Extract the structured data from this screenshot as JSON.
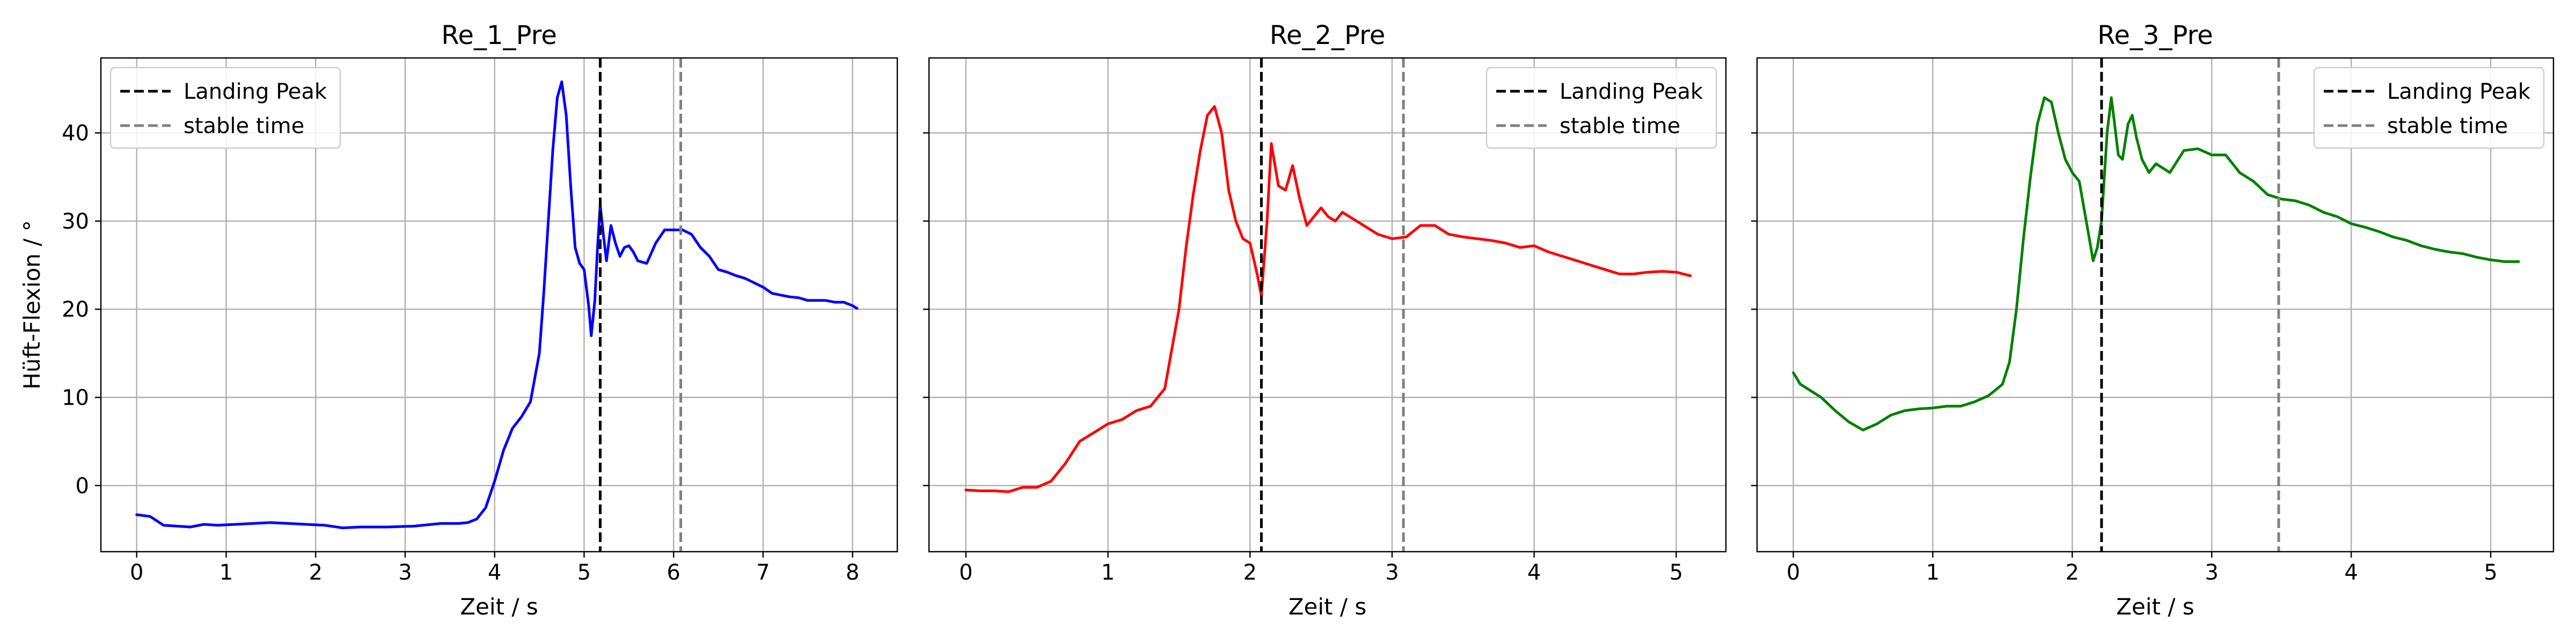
{
  "chart_data": [
    {
      "type": "line",
      "title": "Re_1_Pre",
      "xlabel": "Zeit / s",
      "ylabel": "Hüft-Flexion / °",
      "xlim": [
        -0.4,
        8.5
      ],
      "ylim": [
        -7.5,
        48.5
      ],
      "xticks": [
        0,
        1,
        2,
        3,
        4,
        5,
        6,
        7,
        8
      ],
      "yticks": [
        0,
        10,
        20,
        30,
        40
      ],
      "grid": true,
      "legend": {
        "position": "top-left",
        "entries": [
          "Landing Peak",
          "stable time"
        ]
      },
      "landing_peak": 5.18,
      "stable_time": 6.08,
      "series": [
        {
          "color": "#0000ff",
          "x": [
            0.0,
            0.15,
            0.3,
            0.45,
            0.6,
            0.75,
            0.9,
            1.1,
            1.3,
            1.5,
            1.7,
            1.9,
            2.1,
            2.3,
            2.5,
            2.8,
            3.1,
            3.4,
            3.6,
            3.7,
            3.8,
            3.9,
            4.0,
            4.1,
            4.2,
            4.3,
            4.4,
            4.5,
            4.55,
            4.6,
            4.65,
            4.7,
            4.75,
            4.8,
            4.85,
            4.9,
            4.95,
            5.0,
            5.05,
            5.08,
            5.12,
            5.15,
            5.18,
            5.22,
            5.25,
            5.3,
            5.35,
            5.4,
            5.45,
            5.5,
            5.55,
            5.6,
            5.7,
            5.8,
            5.9,
            6.0,
            6.1,
            6.2,
            6.3,
            6.4,
            6.5,
            6.6,
            6.7,
            6.8,
            6.9,
            7.0,
            7.1,
            7.2,
            7.3,
            7.4,
            7.5,
            7.6,
            7.7,
            7.8,
            7.9,
            8.0,
            8.05
          ],
          "y": [
            -3.3,
            -3.5,
            -4.5,
            -4.6,
            -4.7,
            -4.4,
            -4.5,
            -4.4,
            -4.3,
            -4.2,
            -4.3,
            -4.4,
            -4.5,
            -4.8,
            -4.7,
            -4.7,
            -4.6,
            -4.3,
            -4.3,
            -4.2,
            -3.8,
            -2.5,
            0.5,
            4.0,
            6.5,
            7.8,
            9.5,
            15.0,
            22.0,
            30.0,
            38.0,
            44.0,
            45.8,
            42.0,
            34.0,
            27.0,
            25.2,
            24.5,
            20.5,
            17.0,
            21.0,
            27.0,
            31.8,
            28.0,
            25.5,
            29.5,
            27.5,
            26.0,
            27.0,
            27.2,
            26.5,
            25.5,
            25.2,
            27.5,
            29.0,
            29.0,
            29.0,
            28.5,
            27.0,
            26.0,
            24.5,
            24.2,
            23.8,
            23.5,
            23.0,
            22.5,
            21.8,
            21.6,
            21.4,
            21.3,
            21.0,
            21.0,
            21.0,
            20.8,
            20.8,
            20.4,
            20.1
          ]
        }
      ]
    },
    {
      "type": "line",
      "title": "Re_2_Pre",
      "xlabel": "Zeit / s",
      "xlim": [
        -0.26,
        5.35
      ],
      "ylim": [
        -7.5,
        48.5
      ],
      "xticks": [
        0,
        1,
        2,
        3,
        4,
        5
      ],
      "yticks": [
        0,
        10,
        20,
        30,
        40
      ],
      "grid": true,
      "legend": {
        "position": "top-right",
        "entries": [
          "Landing Peak",
          "stable time"
        ]
      },
      "landing_peak": 2.08,
      "stable_time": 3.08,
      "series": [
        {
          "color": "#ff0000",
          "x": [
            0.0,
            0.1,
            0.2,
            0.3,
            0.4,
            0.5,
            0.6,
            0.7,
            0.8,
            0.9,
            1.0,
            1.1,
            1.2,
            1.3,
            1.4,
            1.5,
            1.55,
            1.6,
            1.65,
            1.7,
            1.75,
            1.8,
            1.85,
            1.9,
            1.95,
            2.0,
            2.05,
            2.08,
            2.12,
            2.15,
            2.2,
            2.25,
            2.3,
            2.35,
            2.4,
            2.45,
            2.5,
            2.55,
            2.6,
            2.65,
            2.7,
            2.8,
            2.9,
            3.0,
            3.1,
            3.2,
            3.3,
            3.4,
            3.5,
            3.6,
            3.7,
            3.8,
            3.9,
            4.0,
            4.1,
            4.2,
            4.3,
            4.4,
            4.5,
            4.6,
            4.7,
            4.8,
            4.9,
            5.0,
            5.1
          ],
          "y": [
            -0.5,
            -0.6,
            -0.6,
            -0.7,
            -0.2,
            -0.2,
            0.5,
            2.5,
            5.0,
            6.0,
            7.0,
            7.5,
            8.5,
            9.0,
            11.0,
            20.0,
            27.0,
            33.0,
            38.0,
            42.0,
            43.0,
            40.0,
            33.5,
            30.0,
            28.0,
            27.5,
            24.0,
            21.5,
            30.0,
            38.8,
            34.0,
            33.5,
            36.3,
            32.5,
            29.5,
            30.5,
            31.5,
            30.5,
            30.0,
            31.0,
            30.5,
            29.5,
            28.5,
            28.0,
            28.2,
            29.5,
            29.5,
            28.5,
            28.2,
            28.0,
            27.8,
            27.5,
            27.0,
            27.2,
            26.5,
            26.0,
            25.5,
            25.0,
            24.5,
            24.0,
            24.0,
            24.2,
            24.3,
            24.2,
            23.8
          ]
        }
      ]
    },
    {
      "type": "line",
      "title": "Re_3_Pre",
      "xlabel": "Zeit / s",
      "xlim": [
        -0.26,
        5.45
      ],
      "ylim": [
        -7.5,
        48.5
      ],
      "xticks": [
        0,
        1,
        2,
        3,
        4,
        5
      ],
      "yticks": [
        0,
        10,
        20,
        30,
        40
      ],
      "grid": true,
      "legend": {
        "position": "top-right",
        "entries": [
          "Landing Peak",
          "stable time"
        ]
      },
      "landing_peak": 2.21,
      "stable_time": 3.48,
      "series": [
        {
          "color": "#008000",
          "x": [
            0.0,
            0.05,
            0.1,
            0.2,
            0.3,
            0.4,
            0.5,
            0.6,
            0.7,
            0.8,
            0.9,
            1.0,
            1.1,
            1.2,
            1.3,
            1.4,
            1.5,
            1.55,
            1.6,
            1.65,
            1.7,
            1.75,
            1.8,
            1.85,
            1.9,
            1.95,
            2.0,
            2.05,
            2.1,
            2.15,
            2.18,
            2.21,
            2.25,
            2.28,
            2.3,
            2.33,
            2.36,
            2.4,
            2.43,
            2.46,
            2.5,
            2.55,
            2.6,
            2.7,
            2.8,
            2.9,
            3.0,
            3.1,
            3.2,
            3.3,
            3.4,
            3.5,
            3.6,
            3.7,
            3.8,
            3.9,
            4.0,
            4.1,
            4.2,
            4.3,
            4.4,
            4.5,
            4.6,
            4.7,
            4.8,
            4.9,
            5.0,
            5.1,
            5.2
          ],
          "y": [
            12.8,
            11.5,
            11.0,
            10.0,
            8.5,
            7.2,
            6.3,
            7.0,
            8.0,
            8.5,
            8.7,
            8.8,
            9.0,
            9.0,
            9.5,
            10.2,
            11.5,
            14.0,
            20.0,
            28.0,
            35.0,
            41.0,
            44.0,
            43.5,
            40.0,
            37.0,
            35.5,
            34.5,
            30.0,
            25.5,
            27.0,
            30.0,
            40.0,
            44.0,
            41.5,
            37.5,
            37.0,
            41.0,
            42.0,
            39.5,
            37.0,
            35.5,
            36.5,
            35.5,
            38.0,
            38.2,
            37.5,
            37.5,
            35.5,
            34.5,
            33.0,
            32.5,
            32.3,
            31.8,
            31.0,
            30.5,
            29.7,
            29.3,
            28.8,
            28.2,
            27.8,
            27.2,
            26.8,
            26.5,
            26.3,
            25.9,
            25.6,
            25.4,
            25.4
          ]
        }
      ]
    }
  ]
}
